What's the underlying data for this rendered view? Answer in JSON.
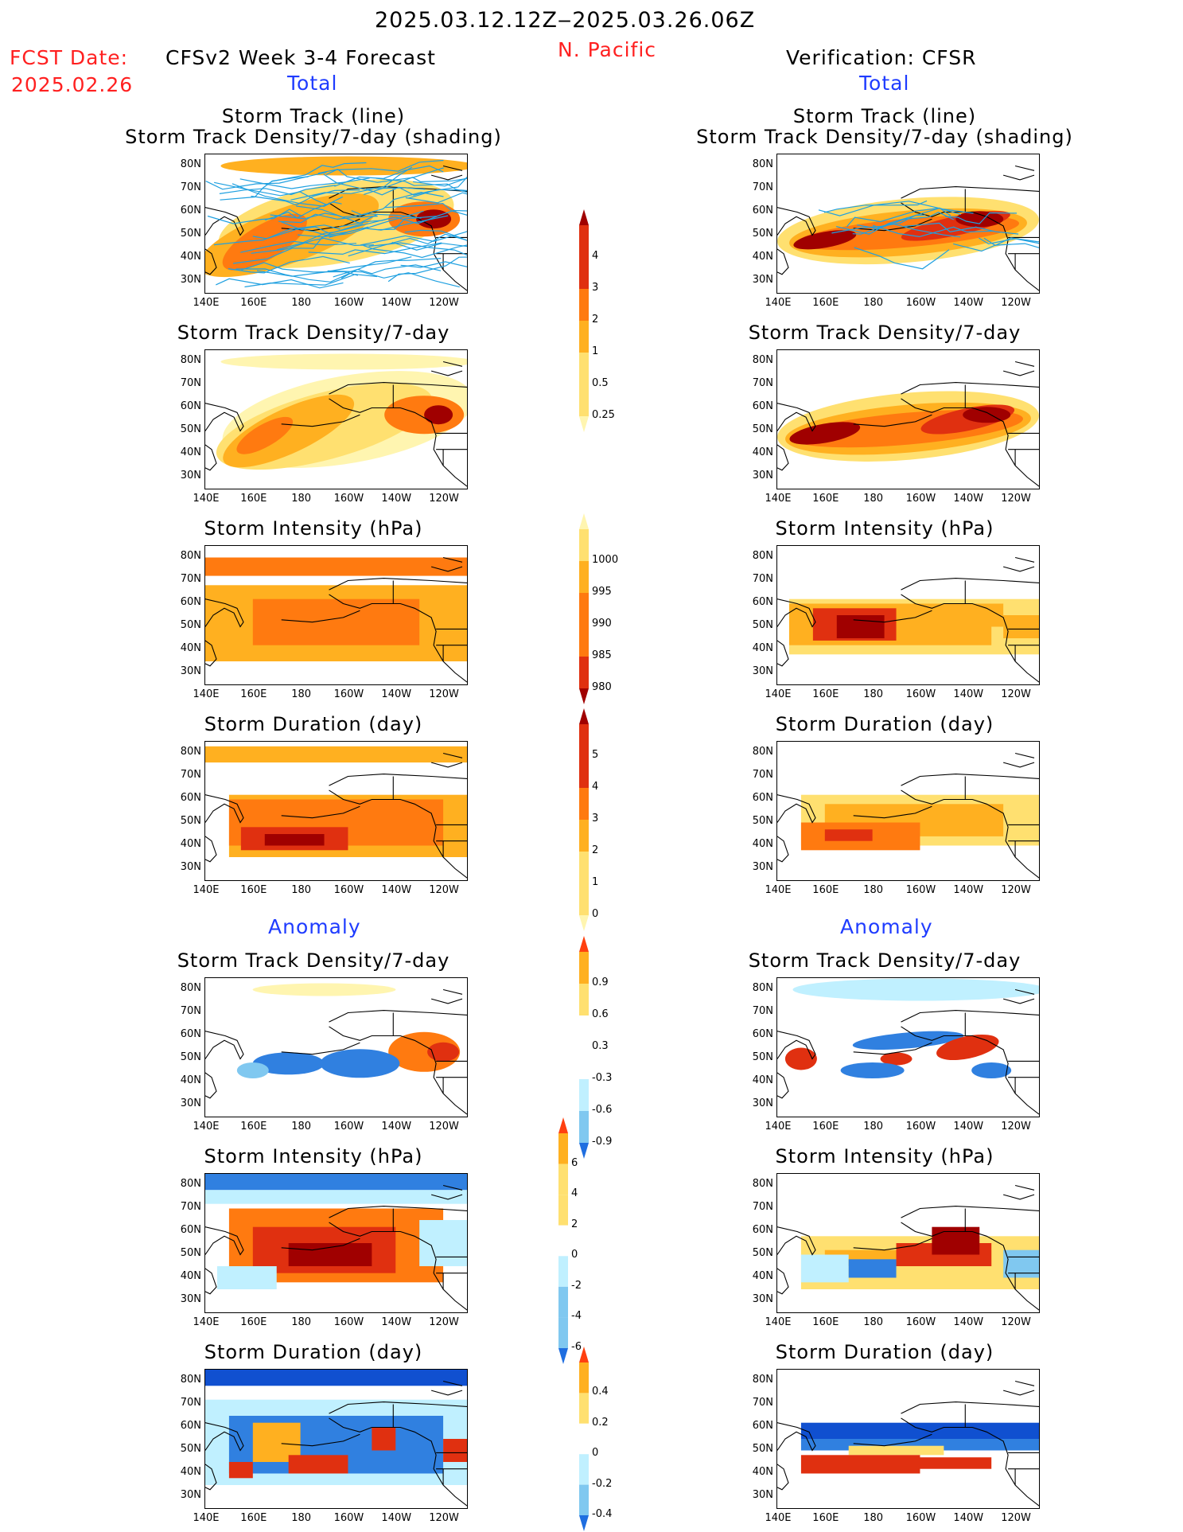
{
  "header": {
    "date_range": "2025.03.12.12Z‒2025.03.26.06Z",
    "region": "N. Pacific",
    "fcst_label": "FCST Date:",
    "fcst_date": "2025.02.26",
    "left_title": "CFSv2 Week 3-4 Forecast",
    "right_title": "Verification: CFSR",
    "total_label_left": "Total",
    "total_label_right": "Total",
    "anomaly_label_left": "Anomaly",
    "anomaly_label_right": "Anomaly"
  },
  "map_axes": {
    "lat_labels": [
      "80N",
      "70N",
      "60N",
      "50N",
      "40N",
      "30N"
    ],
    "lon_labels": [
      "140E",
      "160E",
      "180",
      "160W",
      "140W",
      "120W"
    ]
  },
  "panel_titles": {
    "track_line": "Storm Track (line)",
    "track_density_shading": "Storm Track Density/7-day (shading)",
    "track_density": "Storm Track Density/7-day",
    "intensity": "Storm Intensity (hPa)",
    "duration": "Storm Duration (day)"
  },
  "colorbars": {
    "density_total": [
      "4",
      "3",
      "2",
      "1",
      "0.5",
      "0.25"
    ],
    "intensity_total": [
      "1000",
      "995",
      "990",
      "985",
      "980"
    ],
    "duration_total": [
      "5",
      "4",
      "3",
      "2",
      "1",
      "0"
    ],
    "density_anom": [
      "0.9",
      "0.6",
      "0.3",
      "-0.3",
      "-0.6",
      "-0.9"
    ],
    "intensity_anom": [
      "6",
      "4",
      "2",
      "0",
      "-2",
      "-4",
      "-6"
    ],
    "duration_anom": [
      "0.4",
      "0.2",
      "0",
      "-0.2",
      "-0.4"
    ]
  },
  "colors": {
    "title_red": "#ff2020",
    "label_blue": "#1f3cff",
    "track_line": "#1fa0e0",
    "warm": [
      "#fff5b0",
      "#ffe070",
      "#ffb020",
      "#ff7a10",
      "#e03010",
      "#a00000"
    ],
    "cool": [
      "#c0f0ff",
      "#80c8f0",
      "#3080e0",
      "#1050d0"
    ]
  }
}
